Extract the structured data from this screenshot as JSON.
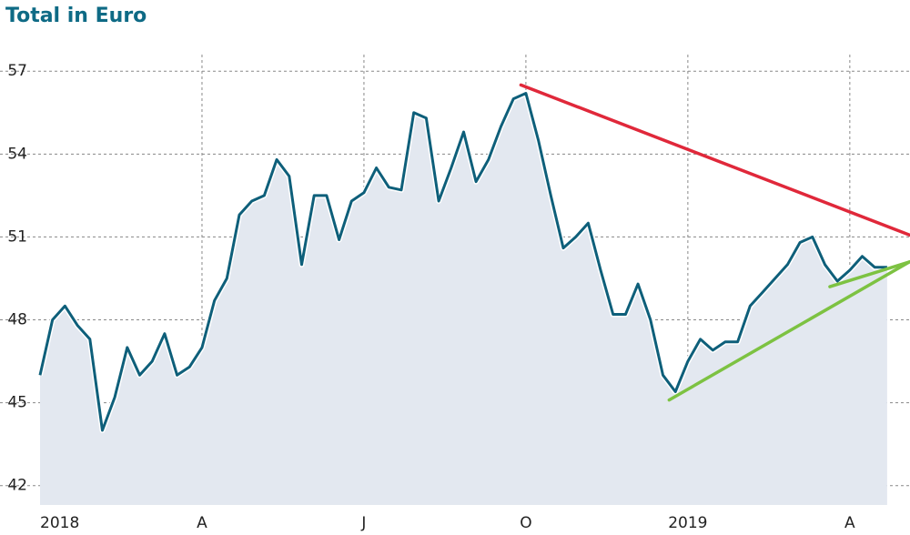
{
  "chart_data": {
    "type": "line",
    "title": "Total in Euro",
    "categories": [
      "2018",
      null,
      null,
      null,
      null,
      null,
      null,
      null,
      null,
      null,
      null,
      null,
      null,
      "A",
      null,
      null,
      null,
      null,
      null,
      null,
      null,
      null,
      null,
      null,
      null,
      null,
      "J",
      null,
      null,
      null,
      null,
      null,
      null,
      null,
      null,
      null,
      null,
      null,
      null,
      "O",
      null,
      null,
      null,
      null,
      null,
      null,
      null,
      null,
      null,
      null,
      null,
      null,
      "2019",
      null,
      null,
      null,
      null,
      null,
      null,
      null,
      null,
      null,
      null,
      null,
      null,
      "A",
      null,
      null,
      null
    ],
    "series": [
      {
        "color": "#0e5f7a",
        "values": [
          46.0,
          48.0,
          48.5,
          47.8,
          47.3,
          44.0,
          45.2,
          47.0,
          46.0,
          46.5,
          47.5,
          46.0,
          46.3,
          47.0,
          48.7,
          49.5,
          51.8,
          52.3,
          52.5,
          53.8,
          53.2,
          50.0,
          52.5,
          52.5,
          50.9,
          52.3,
          52.6,
          53.5,
          52.8,
          52.7,
          55.5,
          55.3,
          52.3,
          53.5,
          54.8,
          53.0,
          53.8,
          55.0,
          56.0,
          56.2,
          54.5,
          52.5,
          50.6,
          51.0,
          51.5,
          49.8,
          48.2,
          48.2,
          49.3,
          48.0,
          46.0,
          45.4,
          46.5,
          47.3,
          46.9,
          47.2,
          47.2,
          48.5,
          49.0,
          49.5,
          50.0,
          50.8,
          51.0,
          50.0,
          49.4,
          49.8,
          50.3,
          49.9,
          49.9
        ]
      }
    ],
    "trendlines": [
      {
        "color": "#e0283a",
        "x": [
          38.6,
          69.8
        ],
        "values": [
          56.5,
          51.07
        ]
      },
      {
        "color": "#7dc242",
        "x": [
          50.5,
          69.8
        ],
        "values": [
          45.1,
          50.1
        ]
      },
      {
        "color": "#7dc242",
        "x": [
          63.4,
          69.8
        ],
        "values": [
          49.2,
          50.1
        ]
      }
    ],
    "ylim": [
      41.3,
      57.6
    ],
    "yticks": [
      42,
      45,
      48,
      51,
      54,
      57
    ],
    "grid": true,
    "area_color": "#e3e8f0"
  }
}
